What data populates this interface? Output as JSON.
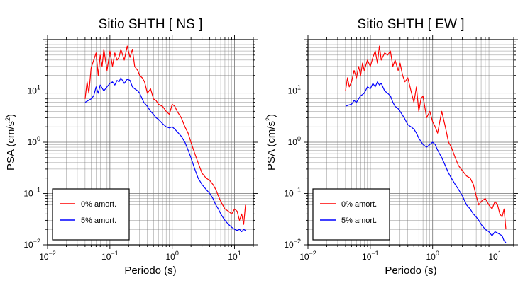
{
  "chart_data": [
    {
      "type": "line",
      "title": "Sitio SHTH [ NS ]",
      "xlabel": "Periodo (s)",
      "ylabel_main": "PSA (cm/s",
      "ylabel_exp": "2",
      "ylabel_close": ")",
      "xscale": "log",
      "yscale": "log",
      "xlim": [
        0.01,
        20
      ],
      "ylim": [
        0.01,
        100
      ],
      "grid": true,
      "legend_position": "bottom-left",
      "x_ticks": [
        {
          "value": 0.01,
          "base": "10",
          "exp": "−2"
        },
        {
          "value": 0.1,
          "base": "10",
          "exp": "−1"
        },
        {
          "value": 1,
          "base": "10",
          "exp": "0"
        },
        {
          "value": 10,
          "base": "10",
          "exp": "1"
        }
      ],
      "y_ticks": [
        {
          "value": 0.01,
          "base": "10",
          "exp": "−2"
        },
        {
          "value": 0.1,
          "base": "10",
          "exp": "−1"
        },
        {
          "value": 1,
          "base": "10",
          "exp": "0"
        },
        {
          "value": 10,
          "base": "10",
          "exp": "1"
        }
      ],
      "series": [
        {
          "name": "0% amort.",
          "color": "#ff0000",
          "x": [
            0.04,
            0.043,
            0.046,
            0.05,
            0.055,
            0.06,
            0.065,
            0.07,
            0.075,
            0.08,
            0.09,
            0.1,
            0.11,
            0.12,
            0.13,
            0.14,
            0.15,
            0.17,
            0.19,
            0.21,
            0.23,
            0.25,
            0.28,
            0.3,
            0.33,
            0.36,
            0.4,
            0.45,
            0.5,
            0.55,
            0.6,
            0.7,
            0.8,
            0.9,
            1.0,
            1.1,
            1.2,
            1.4,
            1.6,
            1.8,
            2.0,
            2.3,
            2.6,
            3.0,
            3.5,
            4.0,
            4.5,
            5.0,
            5.5,
            6.0,
            7.0,
            8.0,
            9.0,
            10.0,
            11.0,
            12.0,
            13.0,
            14.0,
            15.0
          ],
          "y": [
            7,
            15,
            9,
            28,
            40,
            55,
            20,
            50,
            30,
            65,
            25,
            60,
            30,
            55,
            40,
            45,
            65,
            40,
            75,
            45,
            65,
            30,
            25,
            20,
            18,
            15,
            9,
            11,
            7,
            6.5,
            5.5,
            5,
            4,
            3.5,
            5.5,
            5,
            4,
            3,
            2,
            1.5,
            1,
            0.6,
            0.4,
            0.25,
            0.2,
            0.18,
            0.15,
            0.12,
            0.09,
            0.07,
            0.05,
            0.045,
            0.04,
            0.05,
            0.045,
            0.03,
            0.04,
            0.025,
            0.06
          ]
        },
        {
          "name": "5% amort.",
          "color": "#0000ff",
          "x": [
            0.04,
            0.045,
            0.05,
            0.055,
            0.06,
            0.065,
            0.07,
            0.08,
            0.09,
            0.1,
            0.11,
            0.12,
            0.13,
            0.14,
            0.15,
            0.17,
            0.19,
            0.21,
            0.23,
            0.25,
            0.28,
            0.3,
            0.35,
            0.4,
            0.45,
            0.5,
            0.55,
            0.6,
            0.7,
            0.8,
            0.9,
            1.0,
            1.1,
            1.2,
            1.4,
            1.6,
            1.8,
            2.0,
            2.3,
            2.6,
            3.0,
            3.5,
            4.0,
            4.5,
            5.0,
            5.5,
            6.0,
            7.0,
            8.0,
            9.0,
            10.0,
            11.0,
            12.0,
            13.0,
            14.0,
            15.0
          ],
          "y": [
            6,
            6.5,
            7,
            8,
            12,
            9,
            13,
            10,
            12,
            14,
            15,
            13,
            16,
            15,
            18,
            14,
            17,
            16,
            12,
            11,
            10,
            9,
            6,
            5,
            4,
            3.5,
            3,
            2.8,
            2.3,
            2,
            1.9,
            2,
            1.8,
            1.6,
            1.3,
            1,
            0.7,
            0.5,
            0.3,
            0.2,
            0.15,
            0.12,
            0.1,
            0.08,
            0.06,
            0.05,
            0.04,
            0.03,
            0.025,
            0.022,
            0.02,
            0.019,
            0.02,
            0.018,
            0.02,
            0.019
          ]
        }
      ]
    },
    {
      "type": "line",
      "title": "Sitio SHTH [ EW ]",
      "xlabel": "Periodo (s)",
      "ylabel_main": "PSA (cm/s",
      "ylabel_exp": "2",
      "ylabel_close": ")",
      "xscale": "log",
      "yscale": "log",
      "xlim": [
        0.01,
        20
      ],
      "ylim": [
        0.01,
        100
      ],
      "grid": true,
      "legend_position": "bottom-left",
      "x_ticks": [
        {
          "value": 0.01,
          "base": "10",
          "exp": "−2"
        },
        {
          "value": 0.1,
          "base": "10",
          "exp": "−1"
        },
        {
          "value": 1,
          "base": "10",
          "exp": "0"
        },
        {
          "value": 10,
          "base": "10",
          "exp": "1"
        }
      ],
      "y_ticks": [
        {
          "value": 0.01,
          "base": "10",
          "exp": "−2"
        },
        {
          "value": 0.1,
          "base": "10",
          "exp": "−1"
        },
        {
          "value": 1,
          "base": "10",
          "exp": "0"
        },
        {
          "value": 10,
          "base": "10",
          "exp": "1"
        }
      ],
      "series": [
        {
          "name": "0% amort.",
          "color": "#ff0000",
          "x": [
            0.04,
            0.043,
            0.046,
            0.05,
            0.055,
            0.06,
            0.065,
            0.07,
            0.075,
            0.08,
            0.09,
            0.1,
            0.11,
            0.12,
            0.13,
            0.14,
            0.15,
            0.17,
            0.19,
            0.21,
            0.23,
            0.25,
            0.28,
            0.3,
            0.33,
            0.36,
            0.4,
            0.45,
            0.5,
            0.55,
            0.6,
            0.65,
            0.7,
            0.8,
            0.9,
            1.0,
            1.1,
            1.2,
            1.4,
            1.6,
            1.8,
            2.0,
            2.3,
            2.6,
            3.0,
            3.5,
            4.0,
            4.5,
            5.0,
            5.5,
            6.0,
            7.0,
            8.0,
            9.0,
            10.0,
            11.0,
            12.0,
            13.0,
            14.0,
            15.0
          ],
          "y": [
            10,
            18,
            12,
            15,
            25,
            18,
            30,
            20,
            35,
            25,
            40,
            30,
            45,
            60,
            35,
            75,
            40,
            55,
            50,
            60,
            30,
            40,
            25,
            35,
            20,
            15,
            18,
            10,
            6,
            12,
            4,
            7,
            8,
            3,
            4,
            2.5,
            2,
            1.5,
            4,
            2,
            1,
            0.8,
            0.5,
            0.35,
            0.28,
            0.22,
            0.2,
            0.15,
            0.09,
            0.06,
            0.07,
            0.08,
            0.06,
            0.05,
            0.07,
            0.06,
            0.04,
            0.035,
            0.05,
            0.02
          ],
          "note": ""
        },
        {
          "name": "5% amort.",
          "color": "#0000ff",
          "x": [
            0.04,
            0.045,
            0.05,
            0.055,
            0.06,
            0.065,
            0.07,
            0.08,
            0.09,
            0.1,
            0.11,
            0.12,
            0.13,
            0.14,
            0.15,
            0.17,
            0.19,
            0.21,
            0.23,
            0.25,
            0.28,
            0.3,
            0.35,
            0.4,
            0.45,
            0.5,
            0.55,
            0.6,
            0.7,
            0.8,
            0.9,
            1.0,
            1.1,
            1.2,
            1.4,
            1.6,
            1.8,
            2.0,
            2.3,
            2.6,
            3.0,
            3.5,
            4.0,
            4.5,
            5.0,
            5.5,
            6.0,
            7.0,
            8.0,
            9.0,
            10.0,
            11.0,
            12.0,
            13.0,
            14.0,
            15.0
          ],
          "y": [
            5,
            5.3,
            5.5,
            6.5,
            6,
            7,
            8,
            9,
            12,
            11,
            14,
            12,
            15,
            13,
            14,
            10,
            9,
            8,
            6,
            5,
            4.5,
            4,
            3,
            2.2,
            2,
            1.8,
            1.5,
            1.2,
            0.9,
            0.8,
            0.9,
            1.0,
            0.9,
            0.7,
            0.5,
            0.35,
            0.25,
            0.2,
            0.15,
            0.12,
            0.09,
            0.06,
            0.05,
            0.04,
            0.035,
            0.03,
            0.025,
            0.02,
            0.018,
            0.015,
            0.018,
            0.017,
            0.016,
            0.015,
            0.012,
            0.011
          ]
        }
      ]
    }
  ]
}
